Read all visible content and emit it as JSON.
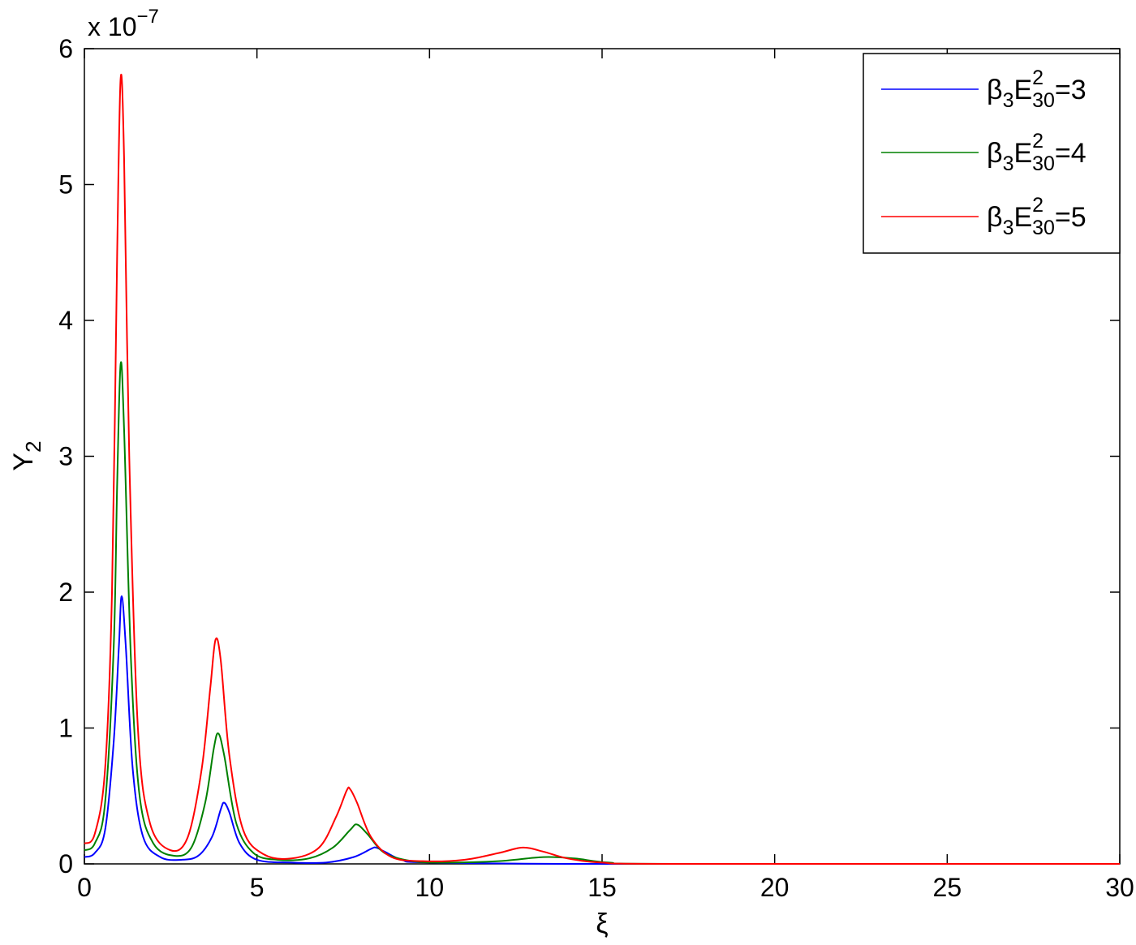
{
  "chart_data": {
    "type": "line",
    "xlabel": "ξ",
    "ylabel": "Y",
    "ylabel_sub": "2",
    "y_scale_note": "x 10",
    "y_scale_exponent": "−7",
    "xlim": [
      0,
      30
    ],
    "ylim": [
      0,
      6
    ],
    "x_ticks": [
      "0",
      "5",
      "10",
      "15",
      "20",
      "25",
      "30"
    ],
    "y_ticks": [
      "0",
      "1",
      "2",
      "3",
      "4",
      "5",
      "6"
    ],
    "grid": false,
    "legend_position": "top-right",
    "series": [
      {
        "legend": {
          "beta": "β",
          "beta_sub": "3",
          "e": "E",
          "e_sup": "2",
          "e_sub": "30",
          "value": "=3"
        },
        "color": "#0000ff",
        "points": [
          [
            0,
            0.05
          ],
          [
            0.3,
            0.08
          ],
          [
            0.6,
            0.25
          ],
          [
            0.85,
            0.9
          ],
          [
            1.0,
            1.6
          ],
          [
            1.08,
            1.97
          ],
          [
            1.2,
            1.6
          ],
          [
            1.4,
            0.7
          ],
          [
            1.7,
            0.2
          ],
          [
            2.2,
            0.05
          ],
          [
            2.8,
            0.03
          ],
          [
            3.3,
            0.06
          ],
          [
            3.7,
            0.2
          ],
          [
            3.95,
            0.4
          ],
          [
            4.05,
            0.45
          ],
          [
            4.2,
            0.38
          ],
          [
            4.5,
            0.15
          ],
          [
            5.0,
            0.03
          ],
          [
            6.0,
            0.01
          ],
          [
            7.0,
            0.01
          ],
          [
            7.8,
            0.05
          ],
          [
            8.3,
            0.11
          ],
          [
            8.45,
            0.12
          ],
          [
            8.7,
            0.09
          ],
          [
            9.2,
            0.03
          ],
          [
            10.0,
            0.01
          ],
          [
            15.0,
            0.0
          ],
          [
            30.0,
            0.0
          ]
        ]
      },
      {
        "legend": {
          "beta": "β",
          "beta_sub": "3",
          "e": "E",
          "e_sup": "2",
          "e_sub": "30",
          "value": "=4"
        },
        "color": "#008000",
        "points": [
          [
            0,
            0.1
          ],
          [
            0.3,
            0.15
          ],
          [
            0.6,
            0.45
          ],
          [
            0.85,
            1.6
          ],
          [
            0.95,
            2.8
          ],
          [
            1.05,
            3.68
          ],
          [
            1.15,
            3.2
          ],
          [
            1.35,
            1.5
          ],
          [
            1.6,
            0.5
          ],
          [
            2.0,
            0.15
          ],
          [
            2.6,
            0.06
          ],
          [
            3.1,
            0.12
          ],
          [
            3.5,
            0.45
          ],
          [
            3.75,
            0.85
          ],
          [
            3.88,
            0.96
          ],
          [
            4.05,
            0.8
          ],
          [
            4.4,
            0.3
          ],
          [
            4.9,
            0.08
          ],
          [
            5.6,
            0.03
          ],
          [
            6.5,
            0.04
          ],
          [
            7.2,
            0.12
          ],
          [
            7.7,
            0.25
          ],
          [
            7.9,
            0.29
          ],
          [
            8.2,
            0.22
          ],
          [
            8.7,
            0.08
          ],
          [
            9.5,
            0.02
          ],
          [
            10.5,
            0.01
          ],
          [
            12.0,
            0.02
          ],
          [
            13.3,
            0.05
          ],
          [
            14.2,
            0.04
          ],
          [
            15.2,
            0.01
          ],
          [
            17.0,
            0.0
          ],
          [
            30.0,
            0.0
          ]
        ]
      },
      {
        "legend": {
          "beta": "β",
          "beta_sub": "3",
          "e": "E",
          "e_sup": "2",
          "e_sub": "30",
          "value": "=5"
        },
        "color": "#ff0000",
        "points": [
          [
            0,
            0.15
          ],
          [
            0.3,
            0.22
          ],
          [
            0.6,
            0.7
          ],
          [
            0.8,
            2.0
          ],
          [
            0.95,
            4.5
          ],
          [
            1.05,
            5.78
          ],
          [
            1.15,
            5.2
          ],
          [
            1.3,
            3.0
          ],
          [
            1.55,
            1.0
          ],
          [
            1.9,
            0.3
          ],
          [
            2.5,
            0.1
          ],
          [
            3.0,
            0.2
          ],
          [
            3.4,
            0.7
          ],
          [
            3.65,
            1.3
          ],
          [
            3.8,
            1.65
          ],
          [
            3.95,
            1.5
          ],
          [
            4.2,
            0.8
          ],
          [
            4.6,
            0.25
          ],
          [
            5.2,
            0.07
          ],
          [
            6.0,
            0.04
          ],
          [
            6.8,
            0.12
          ],
          [
            7.3,
            0.35
          ],
          [
            7.6,
            0.54
          ],
          [
            7.7,
            0.55
          ],
          [
            7.9,
            0.45
          ],
          [
            8.3,
            0.2
          ],
          [
            8.9,
            0.05
          ],
          [
            9.8,
            0.02
          ],
          [
            11.0,
            0.03
          ],
          [
            12.0,
            0.08
          ],
          [
            12.7,
            0.12
          ],
          [
            13.3,
            0.09
          ],
          [
            14.0,
            0.04
          ],
          [
            15.0,
            0.01
          ],
          [
            17.0,
            0.0
          ],
          [
            30.0,
            0.0
          ]
        ]
      }
    ]
  }
}
